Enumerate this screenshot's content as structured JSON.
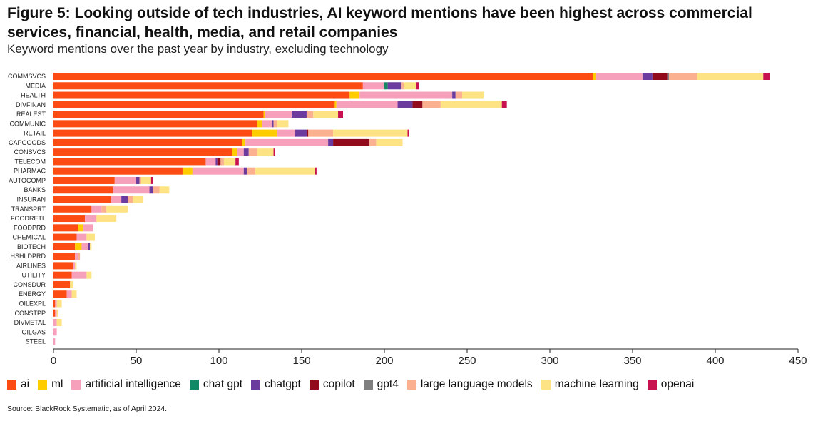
{
  "header": {
    "title": "Figure 5: Looking outside of tech industries, AI keyword mentions have been highest across commercial services, financial, health, media, and retail companies",
    "subtitle": "Keyword mentions over the past year by industry, excluding technology"
  },
  "footer": {
    "source": "Source: BlackRock Systematic, as of April 2024."
  },
  "chart_data": {
    "type": "bar",
    "orientation": "horizontal",
    "stacked": true,
    "xlim": [
      0,
      450
    ],
    "xticks": [
      0,
      50,
      100,
      150,
      200,
      250,
      300,
      350,
      400,
      450
    ],
    "grid": false,
    "legend_position": "bottom",
    "categories": [
      "COMMSVCS",
      "MEDIA",
      "HEALTH",
      "DIVFINAN",
      "REALEST",
      "COMMUNIC",
      "RETAIL",
      "CAPGOODS",
      "CONSVCS",
      "TELECOM",
      "PHARMAC",
      "AUTOCOMP",
      "BANKS",
      "INSURAN",
      "TRANSPRT",
      "FOODRETL",
      "FOODPRD",
      "CHEMICAL",
      "BIOTECH",
      "HSHLDPRD",
      "AIRLINES",
      "UTILITY",
      "CONSDUR",
      "ENERGY",
      "OILEXPL",
      "CONSTPP",
      "DIVMETAL",
      "OILGAS",
      "STEEL"
    ],
    "series": [
      {
        "name": "ai",
        "color": "#fc4c13",
        "values": [
          326,
          187,
          179,
          170,
          127,
          123,
          120,
          114,
          108,
          92,
          78,
          37,
          36,
          35,
          23,
          19,
          15,
          14,
          13,
          13,
          12,
          11,
          10,
          8,
          1,
          1,
          0,
          0,
          0
        ]
      },
      {
        "name": "ml",
        "color": "#ffcc00",
        "values": [
          2,
          0,
          6,
          1,
          1,
          3,
          15,
          2,
          3,
          0,
          6,
          0,
          0,
          0,
          0,
          0,
          3,
          0,
          4,
          0,
          0,
          0,
          0,
          0,
          0,
          0,
          0,
          0,
          0
        ]
      },
      {
        "name": "artificial intelligence",
        "color": "#f6a0bc",
        "values": [
          28,
          13,
          56,
          37,
          16,
          6,
          11,
          50,
          4,
          6,
          31,
          13,
          22,
          6,
          6,
          7,
          6,
          6,
          4,
          2,
          1,
          9,
          0,
          3,
          1,
          1,
          2,
          2,
          1
        ]
      },
      {
        "name": "chat gpt",
        "color": "#128864",
        "values": [
          0,
          2,
          0,
          0,
          0,
          0,
          0,
          0,
          0,
          0,
          0,
          0,
          0,
          0,
          0,
          0,
          0,
          0,
          0,
          0,
          0,
          0,
          0,
          0,
          0,
          0,
          0,
          0,
          0
        ]
      },
      {
        "name": "chatgpt",
        "color": "#6c3b9e",
        "values": [
          6,
          8,
          2,
          9,
          9,
          1,
          7,
          3,
          3,
          1,
          2,
          2,
          2,
          4,
          0,
          0,
          0,
          0,
          1,
          0,
          0,
          0,
          0,
          0,
          0,
          0,
          0,
          0,
          0
        ]
      },
      {
        "name": "copilot",
        "color": "#910b1d",
        "values": [
          9,
          0,
          0,
          6,
          0,
          0,
          1,
          22,
          0,
          2,
          0,
          0,
          0,
          0,
          0,
          0,
          0,
          0,
          0,
          0,
          0,
          0,
          0,
          0,
          0,
          0,
          0,
          0,
          0
        ]
      },
      {
        "name": "gpt4",
        "color": "#7f7f7f",
        "values": [
          1,
          0,
          0,
          0,
          0,
          0,
          0,
          0,
          0,
          0,
          0,
          0,
          0,
          0,
          0,
          0,
          0,
          0,
          0,
          0,
          0,
          0,
          0,
          0,
          0,
          0,
          0,
          0,
          0
        ]
      },
      {
        "name": "large language models",
        "color": "#fbb190",
        "values": [
          17,
          2,
          4,
          11,
          4,
          2,
          15,
          4,
          5,
          2,
          5,
          1,
          4,
          3,
          3,
          0,
          0,
          0,
          0,
          1,
          0,
          0,
          0,
          0,
          0,
          0,
          0,
          0,
          0
        ]
      },
      {
        "name": "machine learning",
        "color": "#fde384",
        "values": [
          40,
          7,
          13,
          37,
          15,
          7,
          45,
          16,
          10,
          7,
          36,
          6,
          6,
          6,
          13,
          12,
          0,
          5,
          1,
          0,
          1,
          3,
          2,
          3,
          3,
          1,
          3,
          0,
          0
        ]
      },
      {
        "name": "openai",
        "color": "#c8114f",
        "values": [
          4,
          2,
          0,
          3,
          3,
          0,
          1,
          0,
          1,
          2,
          1,
          1,
          0,
          0,
          0,
          0,
          0,
          0,
          0,
          0,
          0,
          0,
          0,
          0,
          0,
          0,
          0,
          0,
          0
        ]
      }
    ]
  }
}
